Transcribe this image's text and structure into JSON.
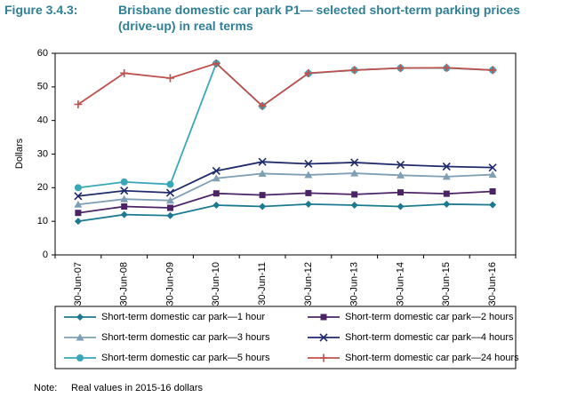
{
  "chart_data": {
    "type": "line",
    "figure_label": "Figure 3.4.3:",
    "title": "Brisbane domestic car park P1— selected short-term parking prices (drive-up) in real terms",
    "y_label": "Dollars",
    "note_label": "Note:",
    "note": "Real values in 2015-16 dollars",
    "categories": [
      "30-Jun-07",
      "30-Jun-08",
      "30-Jun-09",
      "30-Jun-10",
      "30-Jun-11",
      "30-Jun-12",
      "30-Jun-13",
      "30-Jun-14",
      "30-Jun-15",
      "30-Jun-16"
    ],
    "ylim": [
      0,
      60
    ],
    "yticks": [
      0,
      10,
      20,
      30,
      40,
      50,
      60
    ],
    "grid": false,
    "series": [
      {
        "name": "Short-term domestic car park—1 hour",
        "color": "#1b7a90",
        "marker": "diamond",
        "values": [
          10,
          12,
          11.7,
          14.8,
          14.4,
          15.1,
          14.8,
          14.4,
          15.1,
          14.9
        ]
      },
      {
        "name": "Short-term domestic car park—2 hours",
        "color": "#4b2466",
        "marker": "square",
        "values": [
          12.5,
          14.4,
          14,
          18.3,
          17.8,
          18.4,
          18,
          18.6,
          18.2,
          18.9
        ]
      },
      {
        "name": "Short-term domestic car park—3 hours",
        "color": "#7f9fb5",
        "marker": "triangle",
        "values": [
          15,
          16.6,
          16.2,
          22.8,
          24.2,
          23.8,
          24.3,
          23.7,
          23.3,
          23.9
        ]
      },
      {
        "name": "Short-term domestic car park—4 hours",
        "color": "#1f2a6b",
        "marker": "x",
        "values": [
          17.5,
          19.1,
          18.5,
          25,
          27.7,
          27.1,
          27.5,
          26.8,
          26.3,
          26
        ]
      },
      {
        "name": "Short-term domestic car park—5 hours",
        "color": "#3aa7b8",
        "marker": "circle",
        "values": [
          20,
          21.7,
          21,
          57,
          44.3,
          54,
          55,
          55.6,
          55.6,
          55
        ]
      },
      {
        "name": "Short-term domestic car park—24 hours",
        "color": "#c0504d",
        "marker": "plus",
        "values": [
          44.8,
          54.1,
          52.6,
          57,
          44.3,
          54.1,
          55,
          55.6,
          55.7,
          55
        ]
      }
    ]
  }
}
